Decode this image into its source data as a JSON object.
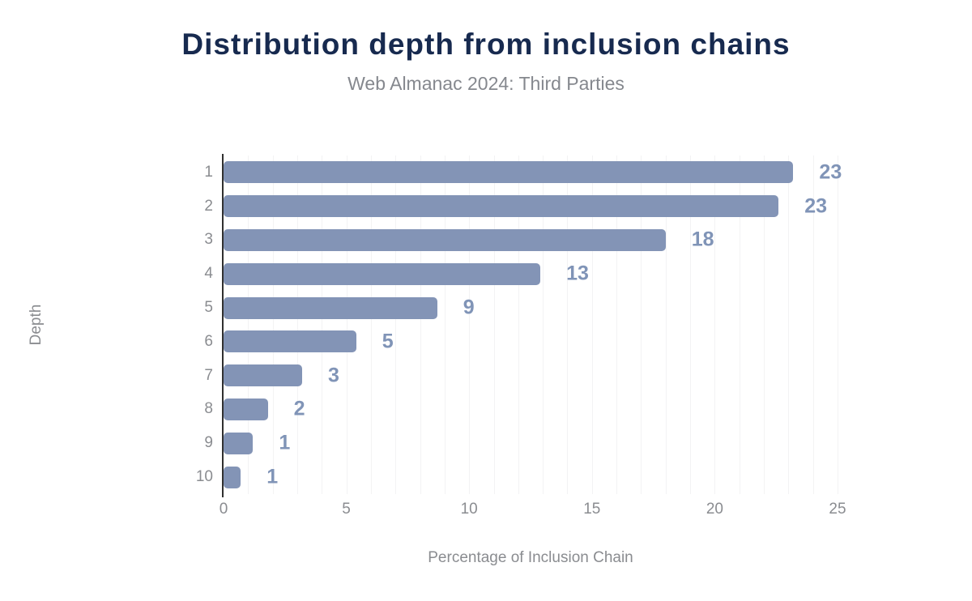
{
  "chart_data": {
    "type": "bar",
    "orientation": "horizontal",
    "title": "Distribution depth from inclusion chains",
    "subtitle": "Web Almanac 2024: Third Parties",
    "xlabel": "Percentage of Inclusion Chain",
    "ylabel": "Depth",
    "categories": [
      "1",
      "2",
      "3",
      "4",
      "5",
      "6",
      "7",
      "8",
      "9",
      "10"
    ],
    "values": [
      23.2,
      22.6,
      18.0,
      12.9,
      8.7,
      5.4,
      3.2,
      1.8,
      1.2,
      0.7
    ],
    "value_labels": [
      "23",
      "23",
      "18",
      "13",
      "9",
      "5",
      "3",
      "2",
      "1",
      "1"
    ],
    "xlim": [
      0,
      25
    ],
    "x_ticks": [
      0,
      5,
      10,
      15,
      20,
      25
    ],
    "grid": {
      "vertical_interval": 1,
      "horizontal": false
    },
    "legend": "none",
    "colors": {
      "background": "#ffffff",
      "bar": "#8394b6",
      "value_label": "#8094b7",
      "title": "#172a4f",
      "subtitle": "#85888e",
      "axis_text": "#8a8c90",
      "grid_line": "#f3f3f4",
      "axis_line": "#303030"
    }
  }
}
